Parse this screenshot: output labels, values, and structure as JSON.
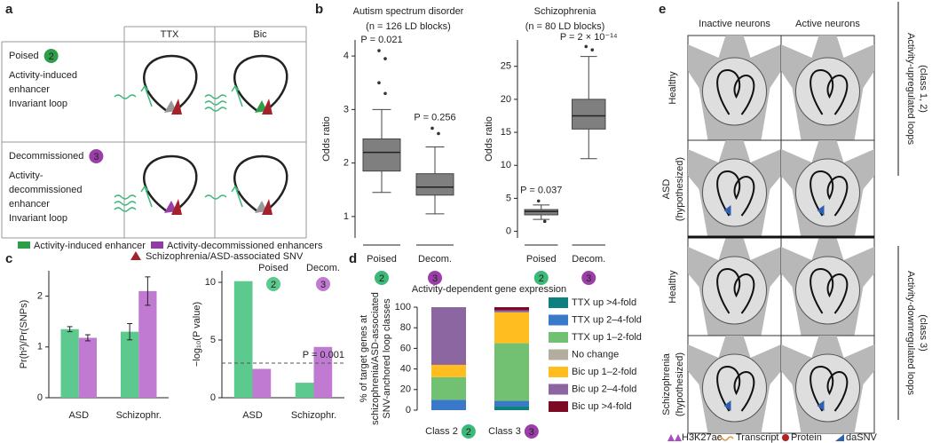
{
  "panel_labels": [
    "a",
    "b",
    "c",
    "d",
    "e"
  ],
  "panel_a": {
    "columns": [
      "TTX",
      "Bic"
    ],
    "rows": [
      {
        "name": "Poised",
        "badge": "2",
        "color": "#2e9e4a",
        "lines": [
          "Activity-induced",
          "enhancer",
          "Invariant loop"
        ]
      },
      {
        "name": "Decommissioned",
        "badge": "3",
        "color": "#9b3fa8",
        "lines": [
          "Activity-",
          "decommissioned",
          "enhancer",
          "Invariant loop"
        ]
      }
    ],
    "legend": [
      "Activity-induced enhancer",
      "Activity-decommissioned enhancers",
      "Schizophrenia/ASD-associated SNV"
    ]
  },
  "panel_e": {
    "columns": [
      "Inactive neurons",
      "Active neurons"
    ],
    "rows": [
      [
        "Healthy"
      ],
      [
        "ASD",
        "(hypothesized)"
      ],
      [
        "Healthy"
      ],
      [
        "Schizophrenia",
        "(hypothesized)"
      ]
    ],
    "groups": [
      {
        "lines": [
          "Activity-upregulated loops",
          "(class 1, 2)"
        ],
        "color": "#2e9e4a"
      },
      {
        "lines": [
          "Activity-downregulated loops",
          "(class 3)"
        ],
        "color": "#9b3fa8"
      }
    ],
    "legend": [
      "H3K27ac",
      "Transcript",
      "Protein",
      "daSNV"
    ]
  },
  "chart_data": [
    {
      "type": "box",
      "title": "Autism spectrum disorder",
      "subtitle": "(n = 126 LD blocks)",
      "ylabel": "Odds ratio",
      "categories": [
        "Poised",
        "Decom."
      ],
      "badges": [
        "2",
        "3"
      ],
      "category_colors": [
        "#3cb878",
        "#9b3fa8"
      ],
      "box_color": "#7f7f7f",
      "boxes": [
        {
          "whislo": 1.45,
          "q1": 1.85,
          "median": 2.2,
          "q3": 2.45,
          "whishi": 3.0
        },
        {
          "whislo": 1.05,
          "q1": 1.4,
          "median": 1.55,
          "q3": 1.8,
          "whishi": 2.3
        }
      ],
      "outliers": [
        [
          4.1,
          3.95,
          3.5,
          3.3
        ],
        [
          2.65,
          2.55
        ]
      ],
      "annotations": [
        "P = 0.021",
        "P = 0.256"
      ],
      "ylim": [
        0.6,
        4.3
      ],
      "yticks": [
        1,
        2,
        3,
        4
      ]
    },
    {
      "type": "box",
      "title": "Schizophrenia",
      "subtitle": "(n = 80 LD blocks)",
      "ylabel": "Odds ratio",
      "categories": [
        "Poised",
        "Decom."
      ],
      "badges": [
        "2",
        "3"
      ],
      "category_colors": [
        "#3cb878",
        "#9b3fa8"
      ],
      "box_color": "#7f7f7f",
      "boxes": [
        {
          "whislo": 1.8,
          "q1": 2.5,
          "median": 3.0,
          "q3": 3.3,
          "whishi": 4.0
        },
        {
          "whislo": 11,
          "q1": 15.5,
          "median": 17.5,
          "q3": 20,
          "whishi": 26.5
        }
      ],
      "outliers": [
        [
          4.6,
          1.5
        ],
        [
          28,
          27.5
        ]
      ],
      "annotations": [
        "P = 0.037",
        "P = 2 × 10⁻¹⁴"
      ],
      "ylim": [
        -1,
        29
      ],
      "yticks": [
        0,
        5,
        10,
        15,
        20,
        25
      ]
    },
    {
      "type": "groupedbar",
      "ylabel": "Pr(h²)/Pr(SNPs)",
      "categories": [
        "ASD",
        "Schizophr."
      ],
      "series": [
        {
          "color": "#5cc98f",
          "values": [
            1.35,
            1.3
          ],
          "errors": [
            0.05,
            0.16
          ]
        },
        {
          "color": "#c07ad2",
          "values": [
            1.18,
            2.1
          ],
          "errors": [
            0.06,
            0.28
          ]
        }
      ],
      "ylim": [
        0,
        2.5
      ],
      "yticks": [
        0,
        1,
        2
      ]
    },
    {
      "type": "groupedbar",
      "ylabel": "−log₁₀(P value)",
      "categories": [
        "ASD",
        "Schizophr."
      ],
      "series": [
        {
          "name": "Poised",
          "badge": "2",
          "color": "#5cc98f",
          "values": [
            10.1,
            1.3
          ]
        },
        {
          "name": "Decom.",
          "badge": "3",
          "color": "#c07ad2",
          "values": [
            2.5,
            4.4
          ]
        }
      ],
      "hline": 3,
      "hline_label": "P = 0.001",
      "ylim": [
        0,
        11
      ],
      "yticks": [
        0,
        5,
        10
      ]
    },
    {
      "type": "stackedbar",
      "title": "Activity-dependent gene expression",
      "ylabel": [
        "% of target genes at",
        "schizophrenia/ASD-associated",
        "SNV-anchored loop classes"
      ],
      "categories": [
        "Class 2",
        "Class 3"
      ],
      "badges": [
        "2",
        "3"
      ],
      "badge_colors": [
        "#3cb878",
        "#9b3fa8"
      ],
      "series": [
        {
          "name": "TTX up >4-fold",
          "color": "#0f8080",
          "values": [
            0,
            4
          ]
        },
        {
          "name": "TTX up 2–4-fold",
          "color": "#3a78c9",
          "values": [
            10,
            5
          ]
        },
        {
          "name": "TTX up 1–2-fold",
          "color": "#72c172",
          "values": [
            22,
            56
          ]
        },
        {
          "name": "No change",
          "color": "#b3ad9f",
          "values": [
            0,
            0
          ]
        },
        {
          "name": "Bic up 1–2-fold",
          "color": "#ffbd1f",
          "values": [
            12,
            30
          ]
        },
        {
          "name": "Bic up 2–4-fold",
          "color": "#8c66a0",
          "values": [
            56,
            2
          ]
        },
        {
          "name": "Bic up >4-fold",
          "color": "#7d0a24",
          "values": [
            0,
            3
          ]
        }
      ],
      "ylim": [
        0,
        100
      ],
      "yticks": [
        0,
        20,
        40,
        60,
        80,
        100
      ]
    }
  ]
}
